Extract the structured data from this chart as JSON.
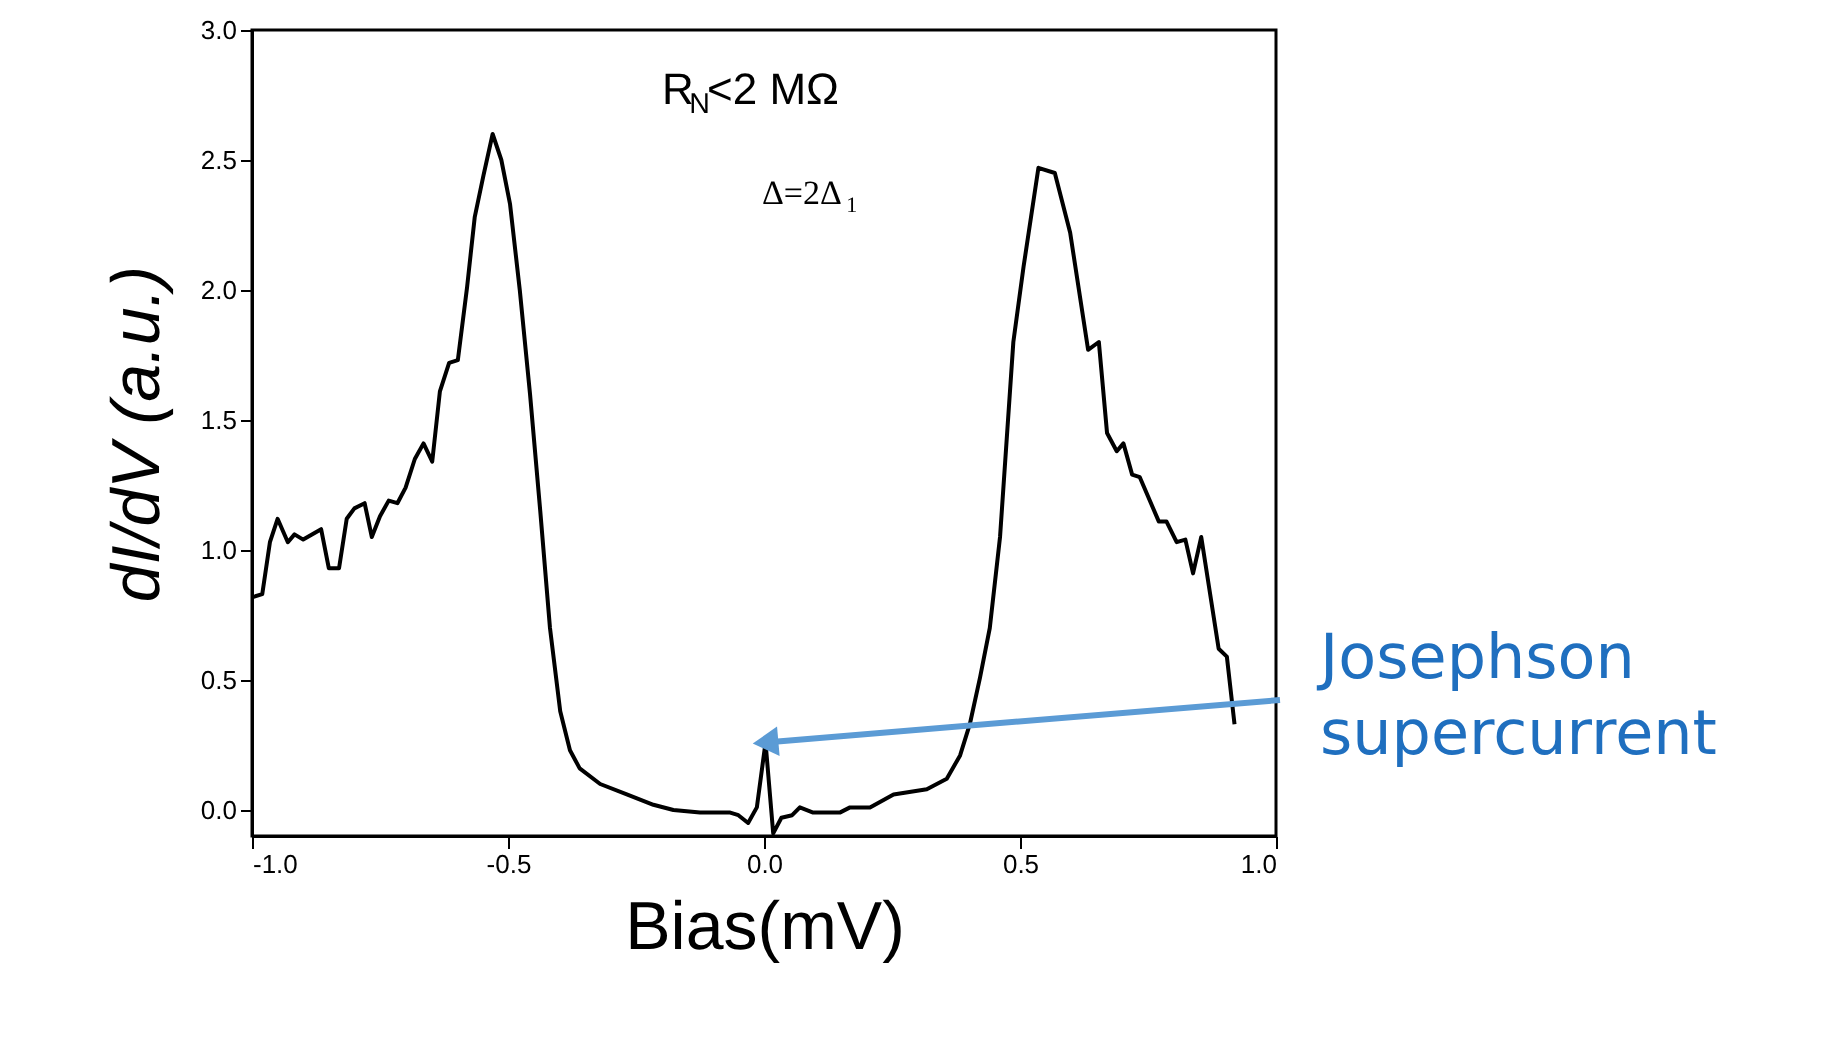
{
  "chart_data": {
    "type": "line",
    "xlabel": "Bias(mV)",
    "ylabel": "dI/dV (a.u.)",
    "x": [
      -0.997,
      -0.98,
      -0.965,
      -0.95,
      -0.93,
      -0.917,
      -0.9,
      -0.865,
      -0.85,
      -0.83,
      -0.815,
      -0.8,
      -0.78,
      -0.766,
      -0.75,
      -0.733,
      -0.716,
      -0.7,
      -0.682,
      -0.665,
      -0.648,
      -0.633,
      -0.615,
      -0.598,
      -0.58,
      -0.565,
      -0.548,
      -0.53,
      -0.513,
      -0.496,
      -0.477,
      -0.457,
      -0.437,
      -0.418,
      -0.398,
      -0.379,
      -0.36,
      -0.32,
      -0.268,
      -0.216,
      -0.177,
      -0.125,
      -0.066,
      -0.05,
      -0.031,
      -0.014,
      0.003,
      0.018,
      0.034,
      0.055,
      0.07,
      0.096,
      0.148,
      0.168,
      0.207,
      0.253,
      0.318,
      0.357,
      0.383,
      0.402,
      0.422,
      0.441,
      0.461,
      0.487,
      0.507,
      0.536,
      0.568,
      0.598,
      0.633,
      0.654,
      0.67,
      0.689,
      0.702,
      0.719,
      0.734,
      0.771,
      0.786,
      0.806,
      0.823,
      0.838,
      0.854,
      0.888,
      0.904,
      0.919
    ],
    "series": [
      {
        "color": "#000000",
        "values": [
          0.82,
          0.83,
          1.03,
          1.12,
          1.03,
          1.06,
          1.04,
          1.08,
          0.93,
          0.93,
          1.12,
          1.16,
          1.18,
          1.05,
          1.13,
          1.19,
          1.18,
          1.24,
          1.35,
          1.41,
          1.34,
          1.61,
          1.72,
          1.73,
          2.01,
          2.28,
          2.44,
          2.6,
          2.5,
          2.33,
          2.0,
          1.6,
          1.15,
          0.7,
          0.38,
          0.23,
          0.16,
          0.1,
          0.06,
          0.02,
          0.0,
          -0.01,
          -0.01,
          -0.02,
          -0.05,
          0.01,
          0.26,
          -0.09,
          -0.03,
          -0.02,
          0.01,
          -0.01,
          -0.01,
          0.01,
          0.01,
          0.06,
          0.08,
          0.12,
          0.21,
          0.33,
          0.51,
          0.7,
          1.05,
          1.8,
          2.09,
          2.47,
          2.45,
          2.22,
          1.77,
          1.8,
          1.45,
          1.38,
          1.41,
          1.29,
          1.28,
          1.11,
          1.11,
          1.03,
          1.04,
          0.91,
          1.05,
          0.62,
          0.59,
          0.33
        ]
      }
    ],
    "xlim": [
      -1.0,
      1.0
    ],
    "xticks": [
      {
        "value": -1.0,
        "label": "-1.0"
      },
      {
        "value": -0.5,
        "label": "-0.5"
      },
      {
        "value": 0,
        "label": "0.0"
      },
      {
        "value": 0.5,
        "label": "0.5"
      },
      {
        "value": 1.0,
        "label": "1.0"
      }
    ],
    "ylim": [
      -0.1,
      3.0
    ],
    "yticks": [
      {
        "value": 0,
        "label": "0.0"
      },
      {
        "value": 0.5,
        "label": "0.5"
      },
      {
        "value": 1.0,
        "label": "1.0"
      },
      {
        "value": 1.5,
        "label": "1.5"
      },
      {
        "value": 2.0,
        "label": "2.0"
      },
      {
        "value": 2.5,
        "label": "2.5"
      },
      {
        "value": 3.0,
        "label": "3.0"
      }
    ],
    "annotations": [
      "R$_{N}$<2 MΩ",
      "Δ=2Δ$_{1}$",
      {
        "text": "Josephson\nsupercurrent",
        "x": 0.003,
        "y": 0.26
      }
    ],
    "grid": false,
    "marker": "none",
    "line_style": "solid"
  }
}
